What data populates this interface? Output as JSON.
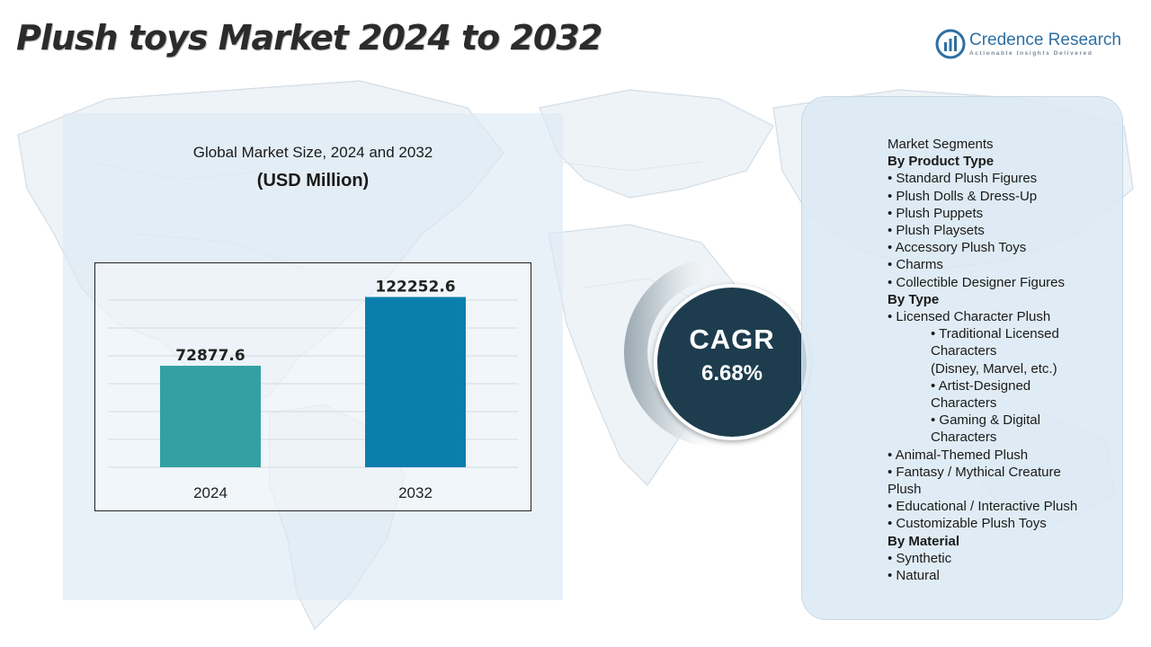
{
  "title": "Plush toys Market 2024 to 2032",
  "brand": {
    "name": "Credence Research",
    "tagline": "Actionable Insights Delivered"
  },
  "colors": {
    "bar_2024": "#34a0a4",
    "bar_2032": "#0a7fae",
    "cagr_fill": "#1d3d4e",
    "panel": "#dbe9f3",
    "brand": "#2d6fa3"
  },
  "chart_heading": "Global Market Size, 2024 and 2032",
  "chart_subheading": "(USD Million)",
  "chart_data": {
    "type": "bar",
    "categories": [
      "2024",
      "2032"
    ],
    "values": [
      72877.6,
      122252.6
    ],
    "value_labels": [
      "72877.6",
      "122252.6"
    ],
    "title": "Global Market Size, 2024 and 2032",
    "ylabel": "",
    "xlabel": "",
    "ylim": [
      0,
      140000
    ],
    "grid": true,
    "legend": "none"
  },
  "cagr": {
    "label": "CAGR",
    "value": "6.68%"
  },
  "segments": [
    {
      "text": "Market Segments",
      "kind": "plain"
    },
    {
      "text": "By Product Type",
      "kind": "heading"
    },
    {
      "text": "•  Standard Plush Figures",
      "kind": "bullet"
    },
    {
      "text": "•  Plush Dolls & Dress-Up",
      "kind": "bullet"
    },
    {
      "text": "•  Plush Puppets",
      "kind": "bullet"
    },
    {
      "text": "•  Plush Playsets",
      "kind": "bullet"
    },
    {
      "text": "•  Accessory Plush Toys",
      "kind": "bullet"
    },
    {
      "text": "•  Charms",
      "kind": "bullet"
    },
    {
      "text": "•  Collectible Designer Figures",
      "kind": "bullet"
    },
    {
      "text": "By Type",
      "kind": "heading"
    },
    {
      "text": "•  Licensed Character Plush",
      "kind": "bullet"
    },
    {
      "text": "    • Traditional Licensed",
      "kind": "indent"
    },
    {
      "text": "Characters",
      "kind": "indent"
    },
    {
      "text": "(Disney, Marvel, etc.)",
      "kind": "indent"
    },
    {
      "text": "    • Artist-Designed",
      "kind": "indent"
    },
    {
      "text": "Characters",
      "kind": "indent"
    },
    {
      "text": "• Gaming & Digital",
      "kind": "indent"
    },
    {
      "text": "Characters",
      "kind": "indent"
    },
    {
      "text": "•  Animal-Themed Plush",
      "kind": "bullet"
    },
    {
      "text": "•  Fantasy / Mythical Creature",
      "kind": "bullet"
    },
    {
      "text": "Plush",
      "kind": "plain"
    },
    {
      "text": "•  Educational / Interactive Plush",
      "kind": "bullet"
    },
    {
      "text": "•  Customizable Plush Toys",
      "kind": "bullet"
    },
    {
      "text": "By Material",
      "kind": "heading"
    },
    {
      "text": "•  Synthetic",
      "kind": "bullet"
    },
    {
      "text": "•  Natural",
      "kind": "bullet"
    }
  ]
}
